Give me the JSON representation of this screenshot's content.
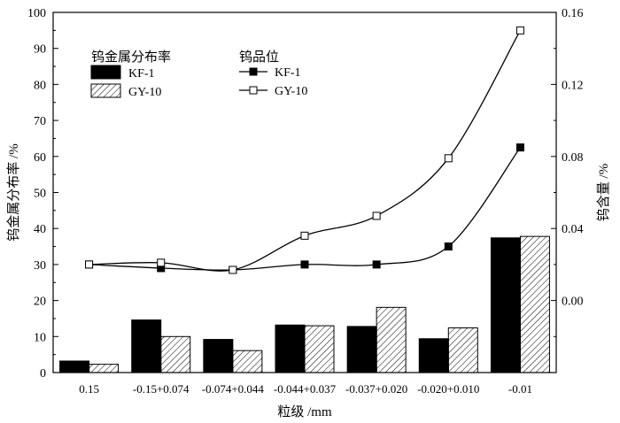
{
  "chart_data": {
    "type": "bar+line",
    "categories": [
      "0.15",
      "-0.15+0.074",
      "-0.074+0.044",
      "-0.044+0.037",
      "-0.037+0.020",
      "-0.020+0.010",
      "-0.01"
    ],
    "xlabel": "粒级 /mm",
    "ylabel_left": "钨金属分布率 /%",
    "ylabel_right": "钨含量 /%",
    "ylim_left": [
      0,
      100
    ],
    "yticks_left": [
      "0",
      "10",
      "20",
      "30",
      "40",
      "50",
      "60",
      "70",
      "80",
      "90",
      "100"
    ],
    "ylim_right": [
      -0.04,
      0.16
    ],
    "yticks_right": [
      "0.00",
      "0.04",
      "0.08",
      "0.12",
      "0.16"
    ],
    "bar_legend_title": "钨金属分布率",
    "line_legend_title": "钨品位",
    "bar_series": [
      {
        "name": "KF-1",
        "fill": "solid-black",
        "values": [
          3.2,
          14.6,
          9.2,
          13.2,
          12.8,
          9.4,
          37.4
        ]
      },
      {
        "name": "GY-10",
        "fill": "diagonal-hatch",
        "values": [
          2.3,
          10.0,
          6.1,
          13.0,
          18.1,
          12.4,
          37.8
        ]
      }
    ],
    "line_series": [
      {
        "name": "KF-1",
        "marker": "filled-square",
        "values": [
          0.02,
          0.018,
          0.017,
          0.02,
          0.02,
          0.03,
          0.085
        ]
      },
      {
        "name": "GY-10",
        "marker": "open-square",
        "values": [
          0.02,
          0.021,
          0.017,
          0.036,
          0.047,
          0.079,
          0.15
        ]
      }
    ],
    "colors": {
      "axis": "#000000",
      "bar_dark": "#000000",
      "bar_light": "#ffffff"
    }
  }
}
